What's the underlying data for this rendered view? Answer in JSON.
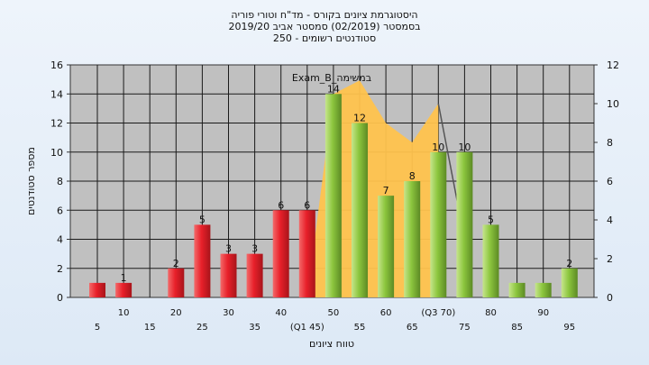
{
  "header": {
    "line1": "היסטוגרמת ציונים בקורס - מד\"ח וטורי פוריה",
    "line2": "בסמסטר  (02/2019)  סמסטר אביב 2019/20",
    "line3": "סטודנטים רשומים - 250"
  },
  "chart_data": {
    "type": "bar",
    "title": "היסטוגרמת ציונים בקורס - מד\"ח וטורי פוריה",
    "xlabel": "טווח ציונים",
    "ylabel": "מספר סטודנטים",
    "ylim": [
      0,
      16
    ],
    "y2lim": [
      0,
      12
    ],
    "yticks": [
      0,
      2,
      4,
      6,
      8,
      10,
      12,
      14,
      16
    ],
    "y2ticks": [
      0,
      2,
      4,
      6,
      8,
      10,
      12
    ],
    "grid": true,
    "categories": [
      "5",
      "10",
      "15",
      "20",
      "25",
      "30",
      "35",
      "40",
      "45",
      "50",
      "55",
      "60",
      "65",
      "70",
      "75",
      "80",
      "85",
      "90",
      "95"
    ],
    "x_tick_labels": [
      "5",
      "10",
      "15",
      "20",
      "25",
      "30",
      "35",
      "40",
      "(Q1 45)",
      "50",
      "55",
      "60",
      "65",
      "(Q3 70)",
      "75",
      "80",
      "85",
      "90",
      "95"
    ],
    "values": [
      1,
      1,
      0,
      2,
      5,
      3,
      3,
      6,
      6,
      14,
      12,
      7,
      8,
      10,
      10,
      5,
      1,
      1,
      2
    ],
    "data_labels": [
      "",
      "1",
      "",
      "2",
      "5",
      "3",
      "3",
      "6",
      "6",
      "14",
      "12",
      "7",
      "8",
      "10",
      "10",
      "5",
      "",
      "",
      "2"
    ],
    "bar_colors": {
      "fail": "#e8202a",
      "pass": "#8cc63e",
      "fail_threshold": 50
    },
    "annotation": "Exam_B_במשימה",
    "overlay_area": {
      "color": "#ffc34d",
      "x": [
        45,
        50,
        55,
        60,
        65,
        70
      ],
      "values": [
        0,
        10.5,
        11.2,
        9,
        8,
        10
      ]
    },
    "overlay_line": {
      "color": "#555555",
      "x": [
        70,
        75
      ],
      "values": [
        10,
        3
      ]
    }
  }
}
